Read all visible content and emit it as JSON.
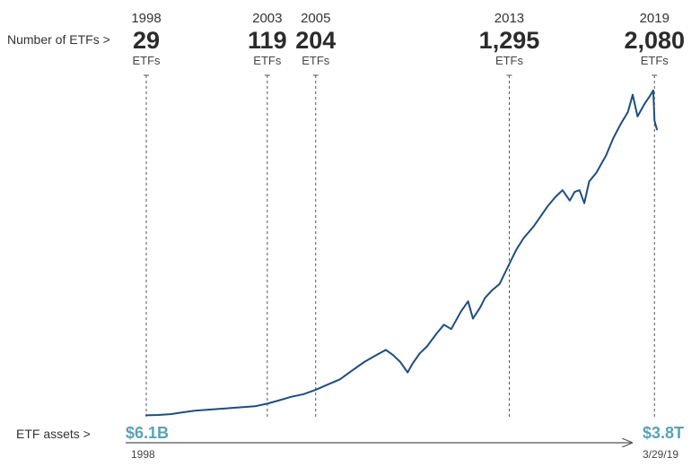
{
  "labels": {
    "etf_count_label": "Number of ETFs >",
    "etf_assets_label": "ETF assets >"
  },
  "colors": {
    "line": "#1d4e80",
    "asset_text": "#5aa2b4",
    "guide": "#555555"
  },
  "chart_data": {
    "type": "line",
    "x_range": [
      1998,
      2019.25
    ],
    "y_range": [
      0,
      3.8
    ],
    "milestones": [
      {
        "year": "1998",
        "count": "29",
        "unit": "ETFs",
        "x": 1998.0
      },
      {
        "year": "2003",
        "count": "119",
        "unit": "ETFs",
        "x": 2003.0
      },
      {
        "year": "2005",
        "count": "204",
        "unit": "ETFs",
        "x": 2005.0
      },
      {
        "year": "2013",
        "count": "1,295",
        "unit": "ETFs",
        "x": 2013.0
      },
      {
        "year": "2019",
        "count": "2,080",
        "unit": "ETFs",
        "x": 2019.0
      }
    ],
    "assets_start": {
      "value": "$6.1B",
      "date": "1998"
    },
    "assets_end": {
      "value": "$3.8T",
      "date": "3/29/19"
    },
    "series": [
      {
        "x": [
          1998.0,
          1998.5,
          1999.0,
          1999.5,
          2000.0,
          2000.5,
          2001.0,
          2001.5,
          2002.0,
          2002.5,
          2003.0,
          2003.5,
          2004.0,
          2004.5,
          2005.0,
          2005.5,
          2006.0,
          2006.5,
          2007.0,
          2007.5,
          2007.9,
          2008.2,
          2008.5,
          2008.8,
          2009.0,
          2009.3,
          2009.6,
          2010.0,
          2010.3,
          2010.6,
          2011.0,
          2011.3,
          2011.5,
          2011.8,
          2012.0,
          2012.3,
          2012.6,
          2013.0,
          2013.3,
          2013.6,
          2014.0,
          2014.3,
          2014.6,
          2014.9,
          2015.2,
          2015.5,
          2015.7,
          2015.9,
          2016.1,
          2016.3,
          2016.6,
          2017.0,
          2017.3,
          2017.6,
          2017.9,
          2018.1,
          2018.3,
          2018.6,
          2018.8,
          2018.95,
          2019.0,
          2019.1
        ],
        "values": [
          0.006,
          0.01,
          0.02,
          0.04,
          0.06,
          0.07,
          0.08,
          0.09,
          0.1,
          0.11,
          0.14,
          0.18,
          0.22,
          0.25,
          0.3,
          0.36,
          0.42,
          0.52,
          0.62,
          0.7,
          0.76,
          0.7,
          0.62,
          0.5,
          0.6,
          0.72,
          0.8,
          0.95,
          1.05,
          1.0,
          1.2,
          1.32,
          1.12,
          1.25,
          1.36,
          1.45,
          1.52,
          1.75,
          1.92,
          2.05,
          2.18,
          2.3,
          2.42,
          2.52,
          2.6,
          2.48,
          2.58,
          2.6,
          2.45,
          2.7,
          2.8,
          3.0,
          3.2,
          3.36,
          3.5,
          3.7,
          3.45,
          3.6,
          3.68,
          3.75,
          3.4,
          3.3
        ]
      }
    ]
  }
}
